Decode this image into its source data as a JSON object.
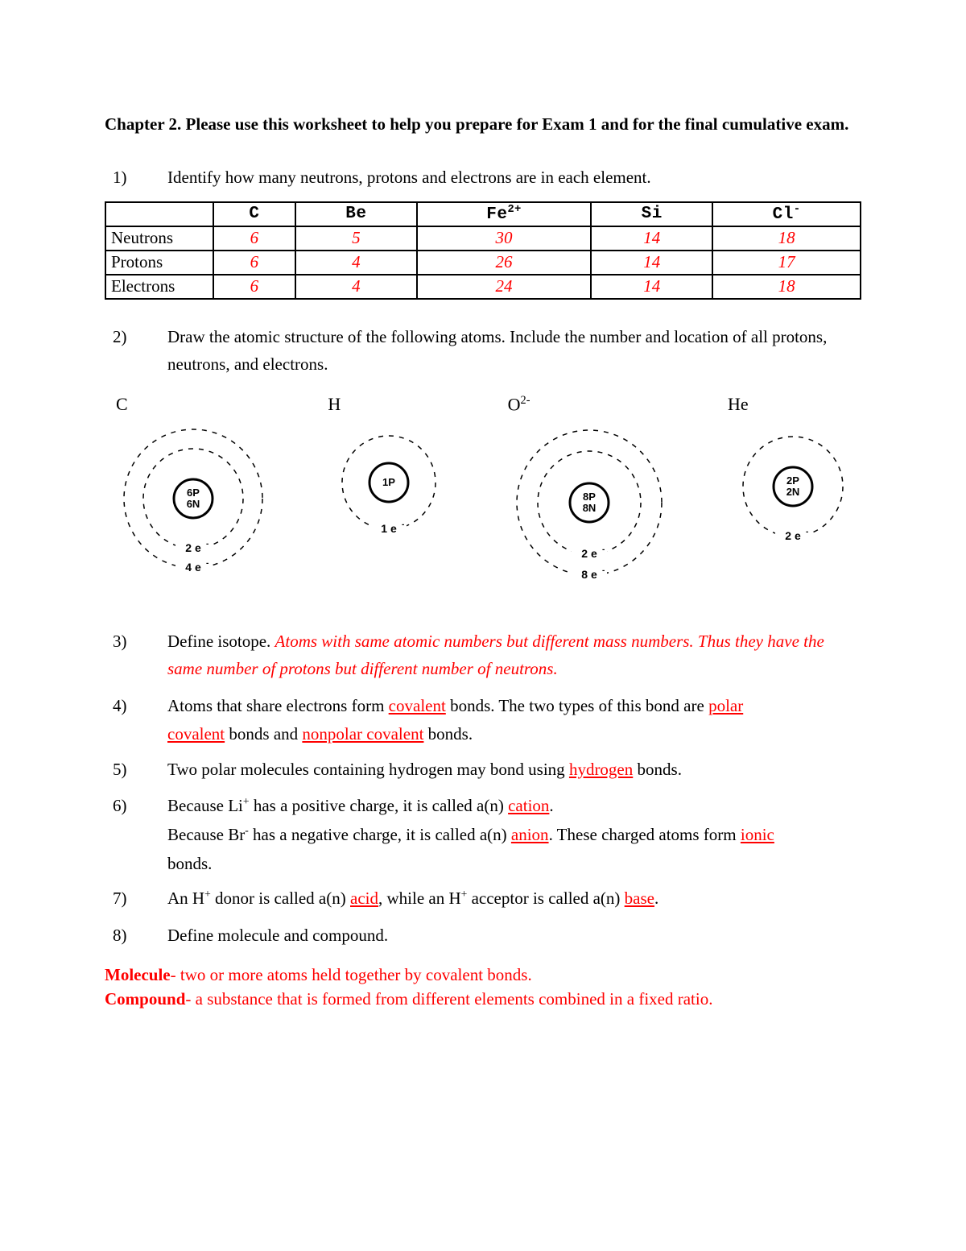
{
  "title": "Chapter 2.  Please use this worksheet to help you prepare for Exam 1 and for the final cumulative exam.",
  "q1": {
    "num": "1)",
    "text": "Identify how many neutrons, protons and electrons are in each element."
  },
  "table": {
    "headers": [
      "",
      "C",
      "Be",
      "Fe",
      "Si",
      "Cl"
    ],
    "fe_sup": "2+",
    "cl_sup": "-",
    "rows": [
      {
        "label": "Neutrons",
        "vals": [
          "6",
          "5",
          "30",
          "14",
          "18"
        ]
      },
      {
        "label": "Protons",
        "vals": [
          "6",
          "4",
          "26",
          "14",
          "17"
        ]
      },
      {
        "label": "Electrons",
        "vals": [
          "6",
          "4",
          "24",
          "14",
          "18"
        ]
      }
    ]
  },
  "q2": {
    "num": "2)",
    "text": "Draw the atomic structure of the following atoms. Include the number and location of all protons, neutrons, and electrons."
  },
  "atoms": [
    {
      "label": "C",
      "nucleus": [
        "6P",
        "6N"
      ],
      "shells": [
        {
          "r": 62,
          "e": "2 e"
        },
        {
          "r": 86,
          "e": "4 e"
        }
      ],
      "size": 200
    },
    {
      "label": "H",
      "nucleus": [
        "1P"
      ],
      "shells": [
        {
          "r": 58,
          "e": "1 e"
        }
      ],
      "size": 160
    },
    {
      "label_html": "O<sup class='sup'>2-</sup>",
      "label": "O2-",
      "nucleus": [
        "8P",
        "8N"
      ],
      "shells": [
        {
          "r": 64,
          "e": "2 e"
        },
        {
          "r": 90,
          "e": "8 e"
        }
      ],
      "size": 210
    },
    {
      "label": "He",
      "nucleus": [
        "2P",
        "2N"
      ],
      "shells": [
        {
          "r": 62,
          "e": "2 e"
        }
      ],
      "size": 170
    }
  ],
  "q3": {
    "num": "3)",
    "lead": "Define isotope. ",
    "answer": "Atoms with same atomic numbers but different mass numbers. Thus they have the same number of protons but different number of neutrons."
  },
  "q4": {
    "num": "4)",
    "p1a": "Atoms that share electrons form ",
    "u1": "covalent",
    "p1b": " bonds.  The two types of this bond are ",
    "u2": "polar ",
    "line2a": "",
    "u3": "covalent",
    "p2a": " bonds and ",
    "u4": "nonpolar covalent",
    "p2b": " bonds."
  },
  "q5": {
    "num": "5)",
    "a": "Two polar molecules containing hydrogen may bond using ",
    "u": "hydrogen",
    "b": " bonds."
  },
  "q6": {
    "num": "6)",
    "a": "Because Li",
    "a_sup": "+",
    "a2": " has a positive charge, it is called a(n) ",
    "u1": "cation",
    "a3": ".",
    "b": "Because Br",
    "b_sup": "-",
    "b2": " has a negative charge, it is called a(n) ",
    "u2": "anion",
    "b3": ". These charged atoms form ",
    "u3": "ionic",
    "b4": " bonds."
  },
  "q7": {
    "num": "7)",
    "a": "An H",
    "a_sup": "+",
    "a2": " donor is called a(n) ",
    "u1": "acid",
    "a3": ", while an H",
    "a3_sup": "+",
    "a4": " acceptor is called a(n) ",
    "u2": "base",
    "a5": "."
  },
  "q8": {
    "num": "8)",
    "text": "Define molecule and compound."
  },
  "defs": {
    "mol_term": "Molecule",
    "mol_body": "- two or more atoms held together by covalent bonds.",
    "cmp_term": "Compound",
    "cmp_body": "- a substance that is formed from different elements combined in a fixed ratio."
  },
  "style": {
    "answer_color": "#ff0000",
    "text_color": "#000000",
    "nucleus_stroke_width": 3,
    "shell_dash": "6 7",
    "font_nucleus": 13
  }
}
